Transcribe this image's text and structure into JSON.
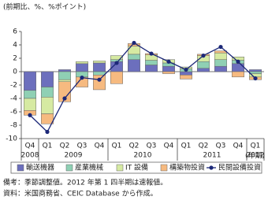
{
  "chart_data": {
    "type": "bar_line",
    "y_label": "(前期比、%、%ポイント)",
    "x_label": "(年期)",
    "categories": [
      "Q4",
      "Q1",
      "Q2",
      "Q3",
      "Q4",
      "Q1",
      "Q2",
      "Q3",
      "Q4",
      "Q1",
      "Q2",
      "Q3",
      "Q4",
      "Q1"
    ],
    "years": [
      "2008",
      "2009",
      null,
      null,
      null,
      "2010",
      null,
      null,
      null,
      "2011",
      null,
      null,
      null,
      "2012"
    ],
    "series": [
      {
        "name": "輸送機器",
        "color": "#6c6fbd",
        "values": [
          -2.8,
          -2.3,
          0.3,
          1.2,
          1.3,
          1.5,
          1.8,
          1.0,
          0.8,
          -0.5,
          0.5,
          0.8,
          1.2,
          0.3
        ]
      },
      {
        "name": "産業機械",
        "color": "#8fd0b4",
        "values": [
          -1.2,
          -1.5,
          -1.2,
          -0.8,
          -0.5,
          0.3,
          0.8,
          0.7,
          0.5,
          0.4,
          1.0,
          1.0,
          0.5,
          -0.3
        ]
      },
      {
        "name": "IT 設備",
        "color": "#d6eaa2",
        "values": [
          -1.8,
          -2.5,
          -0.3,
          0.3,
          0.3,
          0.6,
          1.2,
          0.8,
          0.5,
          0.3,
          0.9,
          1.0,
          0.5,
          -0.5
        ]
      },
      {
        "name": "構築物投資",
        "color": "#f6ba80",
        "values": [
          -0.7,
          -1.5,
          -3.0,
          -1.5,
          -2.2,
          -1.8,
          0.4,
          0.2,
          -0.3,
          -0.6,
          0.2,
          0.3,
          -0.8,
          -0.4
        ]
      },
      {
        "name": "民間設備投資",
        "color": "#1c2878",
        "kind": "line",
        "values": [
          -6.5,
          -9.0,
          -4.0,
          -0.9,
          -1.2,
          1.3,
          4.3,
          2.7,
          1.5,
          0.3,
          2.4,
          3.7,
          1.5,
          -1.0
        ]
      }
    ],
    "ylim": [
      -10,
      6
    ],
    "yticks": [
      -10,
      -8,
      -6,
      -4,
      -2,
      0,
      2,
      4,
      6
    ],
    "grid": false,
    "notes": [
      "備考：季節調整値。2012 年第 1 四半期は速報値。",
      "資料：米国商務省、CEIC Database から作成。"
    ]
  }
}
